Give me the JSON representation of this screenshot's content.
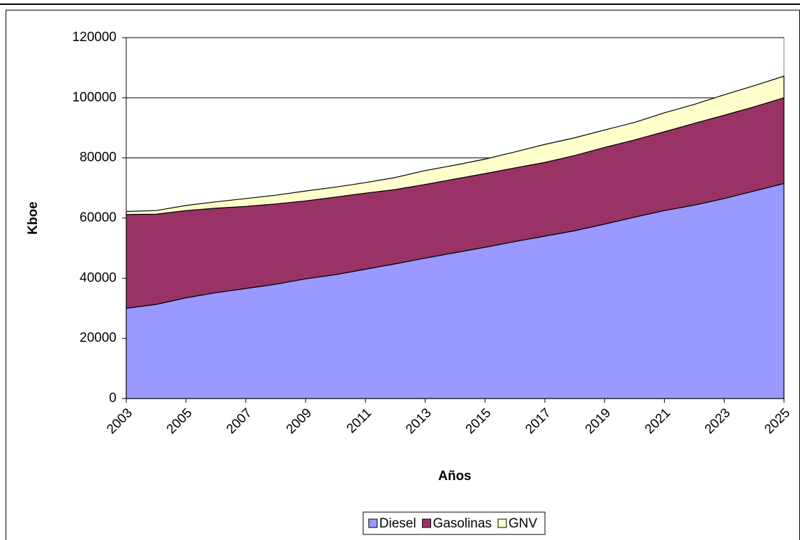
{
  "chart_data": {
    "type": "stacked_area",
    "xlabel": "Años",
    "ylabel": "Kboe",
    "x": [
      2003,
      2004,
      2005,
      2006,
      2007,
      2008,
      2009,
      2010,
      2011,
      2012,
      2013,
      2014,
      2015,
      2016,
      2017,
      2018,
      2019,
      2020,
      2021,
      2022,
      2023,
      2024,
      2025
    ],
    "series": [
      {
        "name": "Diesel",
        "color": "#9999ff",
        "values": [
          30000,
          31300,
          33500,
          35200,
          36600,
          38000,
          39800,
          41200,
          43000,
          44800,
          46700,
          48500,
          50300,
          52200,
          54000,
          55800,
          58000,
          60300,
          62500,
          64300,
          66500,
          69000,
          71500
        ]
      },
      {
        "name": "Gasolinas",
        "color": "#993366",
        "values": [
          31200,
          30000,
          29000,
          28100,
          27300,
          26700,
          25900,
          25800,
          25300,
          24700,
          24500,
          24500,
          24500,
          24500,
          24500,
          25000,
          25500,
          25700,
          26200,
          27200,
          27700,
          28000,
          28500
        ]
      },
      {
        "name": "GNV",
        "color": "#ffffcc",
        "values": [
          1000,
          1200,
          1700,
          2100,
          2600,
          2900,
          3300,
          3300,
          3500,
          4000,
          4600,
          4600,
          4800,
          5300,
          6000,
          5900,
          5800,
          5800,
          6300,
          6300,
          6800,
          7000,
          7200
        ]
      }
    ],
    "xlim": [
      2003,
      2025
    ],
    "xticks": [
      2003,
      2005,
      2007,
      2009,
      2011,
      2013,
      2015,
      2017,
      2019,
      2021,
      2023,
      2025
    ],
    "ylim": [
      0,
      120000
    ],
    "yticks": [
      0,
      20000,
      40000,
      60000,
      80000,
      100000,
      120000
    ],
    "grid": true,
    "legend": "bottom"
  }
}
